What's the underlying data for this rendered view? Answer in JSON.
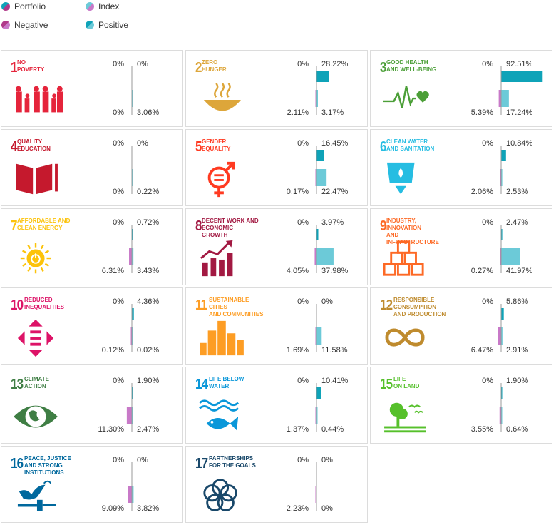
{
  "legend": {
    "portfolio": "Portfolio",
    "index": "Index",
    "negative": "Negative",
    "positive": "Positive"
  },
  "colors": {
    "portfolio": "#0fa3b8",
    "index": "#c879c8",
    "positive_index": "#6ccad8",
    "negative_portfolio": "#b03a8a",
    "axis": "#999999"
  },
  "chart_data": {
    "type": "bar",
    "series_names": [
      "Portfolio",
      "Index"
    ],
    "goals": [
      {
        "number": "1",
        "title": [
          "NO",
          "POVERTY"
        ],
        "color": "#e5243b",
        "icon": "people-icon",
        "portfolio_negative": "0%",
        "portfolio_positive": "0%",
        "index_negative": "0%",
        "index_positive": "3.06%",
        "values": {
          "portfolio_negative": 0,
          "portfolio_positive": 0,
          "index_negative": 0,
          "index_positive": 3.06
        }
      },
      {
        "number": "2",
        "title": [
          "ZERO",
          "HUNGER"
        ],
        "color": "#dda63a",
        "icon": "bowl-icon",
        "portfolio_negative": "0%",
        "portfolio_positive": "28.22%",
        "index_negative": "2.11%",
        "index_positive": "3.17%",
        "values": {
          "portfolio_negative": 0,
          "portfolio_positive": 28.22,
          "index_negative": 2.11,
          "index_positive": 3.17
        }
      },
      {
        "number": "3",
        "title": [
          "GOOD HEALTH",
          "AND WELL-BEING"
        ],
        "color": "#4c9f38",
        "icon": "heartbeat-icon",
        "portfolio_negative": "0%",
        "portfolio_positive": "92.51%",
        "index_negative": "5.39%",
        "index_positive": "17.24%",
        "values": {
          "portfolio_negative": 0,
          "portfolio_positive": 92.51,
          "index_negative": 5.39,
          "index_positive": 17.24
        }
      },
      {
        "number": "4",
        "title": [
          "QUALITY",
          "EDUCATION"
        ],
        "color": "#c5192d",
        "icon": "book-icon",
        "portfolio_negative": "0%",
        "portfolio_positive": "0%",
        "index_negative": "0%",
        "index_positive": "0.22%",
        "values": {
          "portfolio_negative": 0,
          "portfolio_positive": 0,
          "index_negative": 0,
          "index_positive": 0.22
        }
      },
      {
        "number": "5",
        "title": [
          "GENDER",
          "EQUALITY"
        ],
        "color": "#ff3a21",
        "icon": "gender-icon",
        "portfolio_negative": "0%",
        "portfolio_positive": "16.45%",
        "index_negative": "0.17%",
        "index_positive": "22.47%",
        "values": {
          "portfolio_negative": 0,
          "portfolio_positive": 16.45,
          "index_negative": 0.17,
          "index_positive": 22.47
        }
      },
      {
        "number": "6",
        "title": [
          "CLEAN WATER",
          "AND SANITATION"
        ],
        "color": "#26bde2",
        "icon": "water-glass-icon",
        "portfolio_negative": "0%",
        "portfolio_positive": "10.84%",
        "index_negative": "2.06%",
        "index_positive": "2.53%",
        "values": {
          "portfolio_negative": 0,
          "portfolio_positive": 10.84,
          "index_negative": 2.06,
          "index_positive": 2.53
        }
      },
      {
        "number": "7",
        "title": [
          "AFFORDABLE AND",
          "CLEAN ENERGY"
        ],
        "color": "#fcc30b",
        "icon": "sun-power-icon",
        "portfolio_negative": "0%",
        "portfolio_positive": "0.72%",
        "index_negative": "6.31%",
        "index_positive": "3.43%",
        "values": {
          "portfolio_negative": 0,
          "portfolio_positive": 0.72,
          "index_negative": 6.31,
          "index_positive": 3.43
        }
      },
      {
        "number": "8",
        "title": [
          "DECENT WORK AND",
          "ECONOMIC GROWTH"
        ],
        "color": "#a21942",
        "icon": "growth-chart-icon",
        "portfolio_negative": "0%",
        "portfolio_positive": "3.97%",
        "index_negative": "4.05%",
        "index_positive": "37.98%",
        "values": {
          "portfolio_negative": 0,
          "portfolio_positive": 3.97,
          "index_negative": 4.05,
          "index_positive": 37.98
        }
      },
      {
        "number": "9",
        "title": [
          "INDUSTRY, INNOVATION",
          "AND INFRASTRUCTURE"
        ],
        "color": "#fd6925",
        "icon": "cubes-icon",
        "portfolio_negative": "0%",
        "portfolio_positive": "2.47%",
        "index_negative": "0.27%",
        "index_positive": "41.97%",
        "values": {
          "portfolio_negative": 0,
          "portfolio_positive": 2.47,
          "index_negative": 0.27,
          "index_positive": 41.97
        }
      },
      {
        "number": "10",
        "title": [
          "REDUCED",
          "INEQUALITIES"
        ],
        "color": "#dd1367",
        "icon": "equality-arrows-icon",
        "portfolio_negative": "0%",
        "portfolio_positive": "4.36%",
        "index_negative": "0.12%",
        "index_positive": "0.02%",
        "values": {
          "portfolio_negative": 0,
          "portfolio_positive": 4.36,
          "index_negative": 0.12,
          "index_positive": 0.02
        }
      },
      {
        "number": "11",
        "title": [
          "SUSTAINABLE CITIES",
          "AND COMMUNITIES"
        ],
        "color": "#fd9d24",
        "icon": "city-icon",
        "portfolio_negative": "0%",
        "portfolio_positive": "0%",
        "index_negative": "1.69%",
        "index_positive": "11.58%",
        "values": {
          "portfolio_negative": 0,
          "portfolio_positive": 0,
          "index_negative": 1.69,
          "index_positive": 11.58
        }
      },
      {
        "number": "12",
        "title": [
          "RESPONSIBLE",
          "CONSUMPTION",
          "AND PRODUCTION"
        ],
        "color": "#bf8b2e",
        "icon": "infinity-icon",
        "portfolio_negative": "0%",
        "portfolio_positive": "5.86%",
        "index_negative": "6.47%",
        "index_positive": "2.91%",
        "values": {
          "portfolio_negative": 0,
          "portfolio_positive": 5.86,
          "index_negative": 6.47,
          "index_positive": 2.91
        }
      },
      {
        "number": "13",
        "title": [
          "CLIMATE",
          "ACTION"
        ],
        "color": "#3f7e44",
        "icon": "earth-eye-icon",
        "portfolio_negative": "0%",
        "portfolio_positive": "1.90%",
        "index_negative": "11.30%",
        "index_positive": "2.47%",
        "values": {
          "portfolio_negative": 0,
          "portfolio_positive": 1.9,
          "index_negative": 11.3,
          "index_positive": 2.47
        }
      },
      {
        "number": "14",
        "title": [
          "LIFE BELOW",
          "WATER"
        ],
        "color": "#0a97d9",
        "icon": "fish-icon",
        "portfolio_negative": "0%",
        "portfolio_positive": "10.41%",
        "index_negative": "1.37%",
        "index_positive": "0.44%",
        "values": {
          "portfolio_negative": 0,
          "portfolio_positive": 10.41,
          "index_negative": 1.37,
          "index_positive": 0.44
        }
      },
      {
        "number": "15",
        "title": [
          "LIFE",
          "ON LAND"
        ],
        "color": "#56c02b",
        "icon": "tree-birds-icon",
        "portfolio_negative": "0%",
        "portfolio_positive": "1.90%",
        "index_negative": "3.55%",
        "index_positive": "0.64%",
        "values": {
          "portfolio_negative": 0,
          "portfolio_positive": 1.9,
          "index_negative": 3.55,
          "index_positive": 0.64
        }
      },
      {
        "number": "16",
        "title": [
          "PEACE, JUSTICE",
          "AND STRONG",
          "INSTITUTIONS"
        ],
        "color": "#00689d",
        "icon": "dove-gavel-icon",
        "portfolio_negative": "0%",
        "portfolio_positive": "0%",
        "index_negative": "9.09%",
        "index_positive": "3.82%",
        "values": {
          "portfolio_negative": 0,
          "portfolio_positive": 0,
          "index_negative": 9.09,
          "index_positive": 3.82
        }
      },
      {
        "number": "17",
        "title": [
          "PARTNERSHIPS",
          "FOR THE GOALS"
        ],
        "color": "#19486a",
        "icon": "rings-icon",
        "portfolio_negative": "0%",
        "portfolio_positive": "0%",
        "index_negative": "2.23%",
        "index_positive": "0%",
        "values": {
          "portfolio_negative": 0,
          "portfolio_positive": 0,
          "index_negative": 2.23,
          "index_positive": 0
        }
      }
    ]
  }
}
